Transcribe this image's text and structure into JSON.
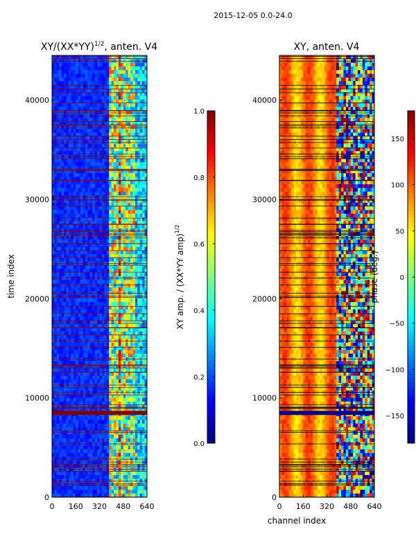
{
  "suptitle": "2015-12-05 0.0-24.0",
  "chart_data": [
    {
      "type": "heatmap",
      "title_main": "XY/(XX*YY)",
      "title_sup": "1/2",
      "title_tail": ", anten. V4",
      "xlabel": "",
      "ylabel": "time index",
      "xlim": [
        0,
        640
      ],
      "ylim": [
        0,
        44500
      ],
      "xticks": [
        0,
        160,
        320,
        480,
        640
      ],
      "yticks": [
        0,
        10000,
        20000,
        30000,
        40000
      ],
      "colorbar": {
        "label_main": "XY amp. / (XX*YY amp)",
        "label_sup": "1/2",
        "range": [
          0.0,
          1.0
        ],
        "ticks": [
          "0.0",
          "0.2",
          "0.4",
          "0.6",
          "0.8",
          "1.0"
        ],
        "tick_values": [
          0.0,
          0.2,
          0.4,
          0.6,
          0.8,
          1.0
        ]
      }
    },
    {
      "type": "heatmap",
      "title_main": "XY, anten. V4",
      "xlabel": "channel index",
      "ylabel": "",
      "xlim": [
        0,
        640
      ],
      "ylim": [
        0,
        44500
      ],
      "xticks": [
        0,
        160,
        320,
        480,
        640
      ],
      "yticks": [
        0,
        10000,
        20000,
        30000,
        40000
      ],
      "colorbar": {
        "label_main": "phase (deg.)",
        "range": [
          -180,
          180
        ],
        "ticks": [
          "150",
          "100",
          "50",
          "0",
          "−50",
          "−100",
          "−150"
        ],
        "tick_values": [
          150,
          100,
          50,
          0,
          -50,
          -100,
          -150
        ]
      }
    }
  ]
}
